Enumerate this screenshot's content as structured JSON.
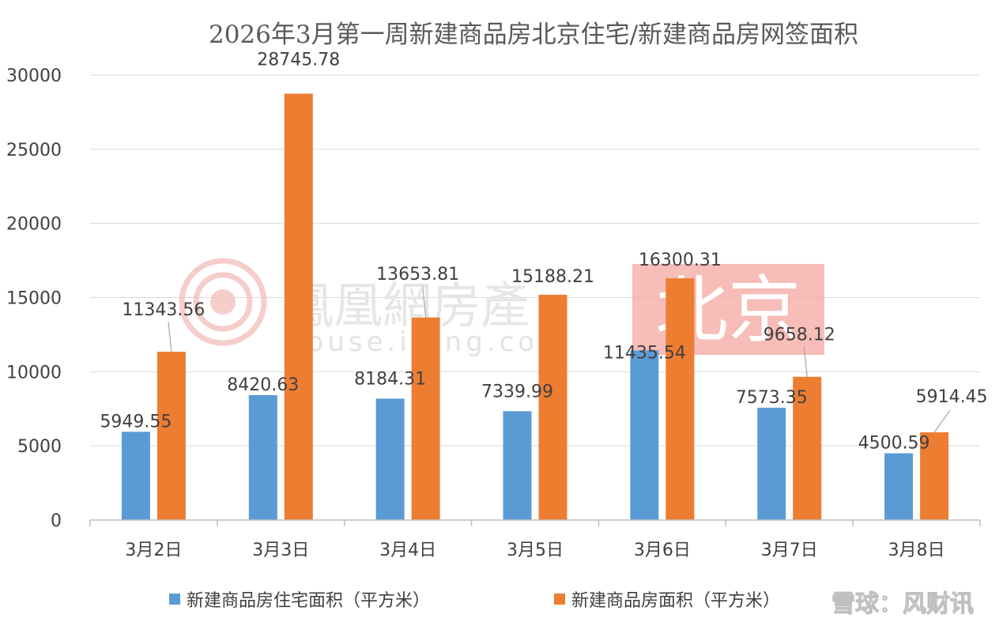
{
  "chart_data": {
    "type": "bar",
    "title": "2026年3月第一周新建商品房北京住宅/新建商品房网签面积",
    "categories": [
      "3月2日",
      "3月3日",
      "3月4日",
      "3月5日",
      "3月6日",
      "3月7日",
      "3月8日"
    ],
    "series": [
      {
        "name": "新建商品房住宅面积（平方米）",
        "color": "#5B9BD5",
        "values": [
          5949.55,
          8420.63,
          8184.31,
          7339.99,
          11435.54,
          7573.35,
          4500.59
        ],
        "labels": [
          "5949.55",
          "8420.63",
          "8184.31",
          "7339.99",
          "11435.54",
          "7573.35",
          "4500.59"
        ]
      },
      {
        "name": "新建商品房面积（平方米）",
        "color": "#ED7D31",
        "values": [
          11343.56,
          28745.78,
          13653.81,
          15188.21,
          16300.31,
          9658.12,
          5914.45
        ],
        "labels": [
          "11343.56",
          "28745.78",
          "13653.81",
          "15188.21",
          "16300.31",
          "9658.12",
          "5914.45"
        ]
      }
    ],
    "ylim": [
      0,
      30000
    ],
    "yticks": [
      "0",
      "5000",
      "10000",
      "15000",
      "20000",
      "25000",
      "30000"
    ],
    "xlabel": "",
    "ylabel": "",
    "grid": true,
    "legend": "bottom"
  },
  "watermark": {
    "brand": "鳳凰網房產",
    "url": "house.ifeng.com",
    "city": "北京",
    "city_color": "#F4A7A0",
    "credit": "雪球：风财讯"
  }
}
